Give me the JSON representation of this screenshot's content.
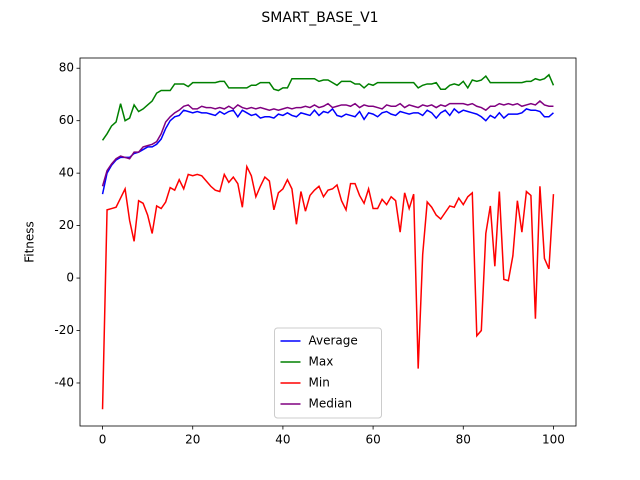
{
  "chart_data": {
    "type": "line",
    "title": "SMART_BASE_V1",
    "y_label": "Fitness",
    "x": [
      0,
      1,
      2,
      3,
      4,
      5,
      6,
      7,
      8,
      9,
      10,
      11,
      12,
      13,
      14,
      15,
      16,
      17,
      18,
      19,
      20,
      21,
      22,
      23,
      24,
      25,
      26,
      27,
      28,
      29,
      30,
      31,
      32,
      33,
      34,
      35,
      36,
      37,
      38,
      39,
      40,
      41,
      42,
      43,
      44,
      45,
      46,
      47,
      48,
      49,
      50,
      51,
      52,
      53,
      54,
      55,
      56,
      57,
      58,
      59,
      60,
      61,
      62,
      63,
      64,
      65,
      66,
      67,
      68,
      69,
      70,
      71,
      72,
      73,
      74,
      75,
      76,
      77,
      78,
      79,
      80,
      81,
      82,
      83,
      84,
      85,
      86,
      87,
      88,
      89,
      90,
      91,
      92,
      93,
      94,
      95,
      96,
      97,
      98,
      99,
      100
    ],
    "series": [
      {
        "name": "Average",
        "color": "#0000ff",
        "values": [
          32,
          40,
          43,
          45,
          46,
          46,
          46,
          47.5,
          48,
          49,
          50,
          50,
          51,
          53,
          57,
          60,
          61.5,
          62,
          64,
          63.5,
          63,
          63.5,
          63,
          63,
          62.5,
          62,
          63.5,
          62.5,
          63.5,
          64,
          61.5,
          64,
          63,
          62,
          62.5,
          61,
          61.5,
          61.5,
          61,
          62.5,
          62,
          63,
          62,
          61.5,
          63,
          62.5,
          62,
          64,
          62,
          63.5,
          63,
          64.5,
          62,
          61.5,
          62.5,
          62,
          61.5,
          63.5,
          60.5,
          63,
          62.5,
          61.5,
          63,
          63.5,
          62.5,
          62,
          63.5,
          63,
          62.5,
          63,
          63,
          62,
          64,
          63,
          61,
          63,
          64,
          62,
          64.5,
          63,
          64,
          63.5,
          63,
          62.5,
          61.5,
          60,
          62,
          61,
          63,
          61,
          62.5,
          62.5,
          62.5,
          63,
          64.5,
          64,
          64,
          63.5,
          61.5,
          61.5,
          63
        ]
      },
      {
        "name": "Max",
        "color": "#008000",
        "values": [
          52.5,
          55,
          58,
          59.5,
          66.5,
          60,
          61,
          66,
          63.5,
          64.5,
          66,
          67.5,
          70.5,
          71.5,
          71.5,
          71.5,
          74,
          74,
          74,
          73,
          74.5,
          74.5,
          74.5,
          74.5,
          74.5,
          74.5,
          75,
          75,
          72.5,
          72.5,
          72.5,
          72.5,
          72.5,
          73.5,
          73.5,
          74.5,
          74.5,
          74.5,
          72,
          71.5,
          72.5,
          72.5,
          76,
          76,
          76,
          76,
          76,
          76,
          75,
          75.5,
          75.5,
          74.5,
          73.5,
          75,
          75,
          75,
          74,
          74,
          72.5,
          74,
          73.5,
          74.5,
          74.5,
          74.5,
          74.5,
          74.5,
          74.5,
          74.5,
          74.5,
          74.5,
          72.5,
          73.5,
          74,
          74,
          74.5,
          72,
          72,
          73.5,
          74,
          73.5,
          75,
          72.5,
          75.5,
          75,
          75.5,
          77,
          74.5,
          74.5,
          74.5,
          74.5,
          74.5,
          74.5,
          74.5,
          74.5,
          75,
          75,
          76,
          75.5,
          76,
          77.5,
          73.5
        ]
      },
      {
        "name": "Min",
        "color": "#ff0000",
        "values": [
          -50,
          26,
          26.5,
          27,
          30.5,
          34,
          22,
          14,
          29.5,
          28.5,
          24,
          17,
          27.5,
          26.5,
          29,
          34.5,
          33.5,
          37.5,
          34,
          39.5,
          39,
          39.5,
          39,
          37,
          35,
          33.5,
          33,
          39.5,
          36.5,
          38.5,
          36,
          27,
          42.5,
          39,
          31,
          35,
          38.5,
          37,
          26,
          32.5,
          34,
          37.5,
          34,
          20.5,
          33,
          25.5,
          31.5,
          33.5,
          35,
          31,
          33.5,
          34,
          35.5,
          29.5,
          26,
          36,
          36,
          31.5,
          28.5,
          34,
          26.5,
          26.5,
          30,
          28,
          31,
          29.5,
          17.5,
          32.5,
          26.5,
          32,
          -34.5,
          9,
          29,
          27,
          24,
          22.5,
          25,
          27.5,
          27,
          30.5,
          28,
          31,
          32.5,
          -22,
          -20,
          17,
          27.5,
          4.5,
          33,
          -0.5,
          -1,
          8.5,
          29.5,
          17.5,
          33,
          31.5,
          -15.5,
          35,
          7.5,
          3.5,
          32
        ]
      },
      {
        "name": "Median",
        "color": "#800080",
        "values": [
          35,
          41,
          43.5,
          45.5,
          46.5,
          46,
          45.5,
          48,
          48,
          50,
          50.5,
          51,
          52,
          55,
          59.5,
          61.5,
          63,
          64,
          65.5,
          66,
          64.5,
          64.5,
          65.5,
          65,
          65,
          64.5,
          65,
          64.5,
          65.5,
          64.5,
          66,
          65,
          64.5,
          65,
          64.5,
          65,
          64.5,
          64,
          64.5,
          64,
          64.5,
          65,
          64.5,
          65,
          65,
          65.5,
          65,
          66,
          65,
          65.5,
          66.5,
          65,
          65.5,
          66,
          66,
          65.5,
          66.5,
          65,
          66,
          65.5,
          65.5,
          65,
          64.5,
          66,
          65.5,
          65.5,
          66.5,
          65,
          66,
          65.5,
          65,
          66,
          65.5,
          66,
          65,
          66,
          65.5,
          66.5,
          66.5,
          66.5,
          66.5,
          66,
          66.5,
          65.5,
          65,
          64,
          65.5,
          65.5,
          66.5,
          66,
          66.5,
          66,
          66.5,
          65.5,
          66,
          66.5,
          66,
          67.5,
          66,
          65.5,
          65.5
        ]
      }
    ],
    "xlim": [
      -5,
      105
    ],
    "ylim": [
      -56.4,
      83.9
    ],
    "xticks": [
      0,
      20,
      40,
      60,
      80,
      100
    ],
    "yticks": [
      -40,
      -20,
      0,
      20,
      40,
      60,
      80
    ],
    "legend": "lower center"
  }
}
